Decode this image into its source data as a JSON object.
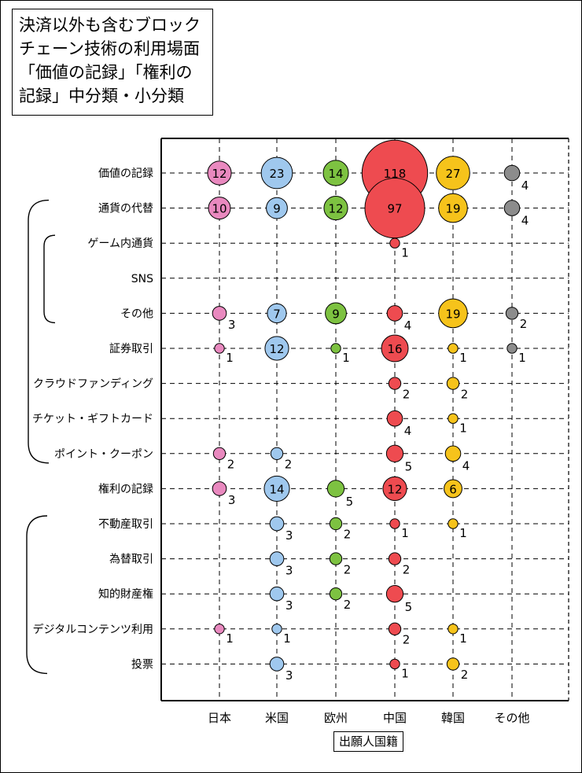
{
  "chart_data": {
    "type": "bubble",
    "title": "決済以外も含むブロック\nチェーン技術の利用場面\n「価値の記録」「権利の\n記録」中分類・小分類",
    "xlabel": "出願人国籍",
    "x_categories": [
      "日本",
      "米国",
      "欧州",
      "中国",
      "韓国",
      "その他"
    ],
    "y_categories": [
      "価値の記録",
      "通貨の代替",
      "ゲーム内通貨",
      "SNS",
      "その他",
      "証券取引",
      "クラウドファンディング",
      "チケット・ギフトカード",
      "ポイント・クーポン",
      "権利の記録",
      "不動産取引",
      "為替取引",
      "知的財産権",
      "デジタルコンテンツ利用",
      "投票"
    ],
    "colors": {
      "日本": "#e989bf",
      "米国": "#9fc8ee",
      "欧州": "#7dc241",
      "中国": "#ee4b50",
      "韓国": "#f6c31b",
      "その他": "#8c8c8c"
    },
    "series": [
      {
        "name": "日本",
        "values": [
          12,
          10,
          null,
          null,
          3,
          1,
          null,
          null,
          2,
          3,
          null,
          null,
          null,
          1,
          null
        ]
      },
      {
        "name": "米国",
        "values": [
          23,
          9,
          null,
          null,
          7,
          12,
          null,
          null,
          2,
          14,
          3,
          3,
          3,
          1,
          3
        ]
      },
      {
        "name": "欧州",
        "values": [
          14,
          12,
          null,
          null,
          9,
          1,
          null,
          null,
          null,
          5,
          2,
          2,
          2,
          null,
          null
        ]
      },
      {
        "name": "中国",
        "values": [
          118,
          97,
          1,
          null,
          4,
          16,
          2,
          4,
          5,
          12,
          1,
          2,
          5,
          2,
          1
        ]
      },
      {
        "name": "韓国",
        "values": [
          27,
          19,
          null,
          null,
          19,
          1,
          2,
          1,
          4,
          6,
          1,
          null,
          null,
          1,
          2
        ]
      },
      {
        "name": "その他",
        "values": [
          4,
          4,
          null,
          null,
          2,
          1,
          null,
          null,
          null,
          null,
          null,
          null,
          null,
          null,
          null
        ]
      }
    ],
    "bracket_groups": [
      {
        "from": "通貨の代替",
        "to": "ポイント・クーポン"
      },
      {
        "from": "ゲーム内通貨",
        "to": "その他"
      },
      {
        "from": "不動産取引",
        "to": "投票"
      }
    ],
    "grid": true,
    "legend": "none"
  }
}
